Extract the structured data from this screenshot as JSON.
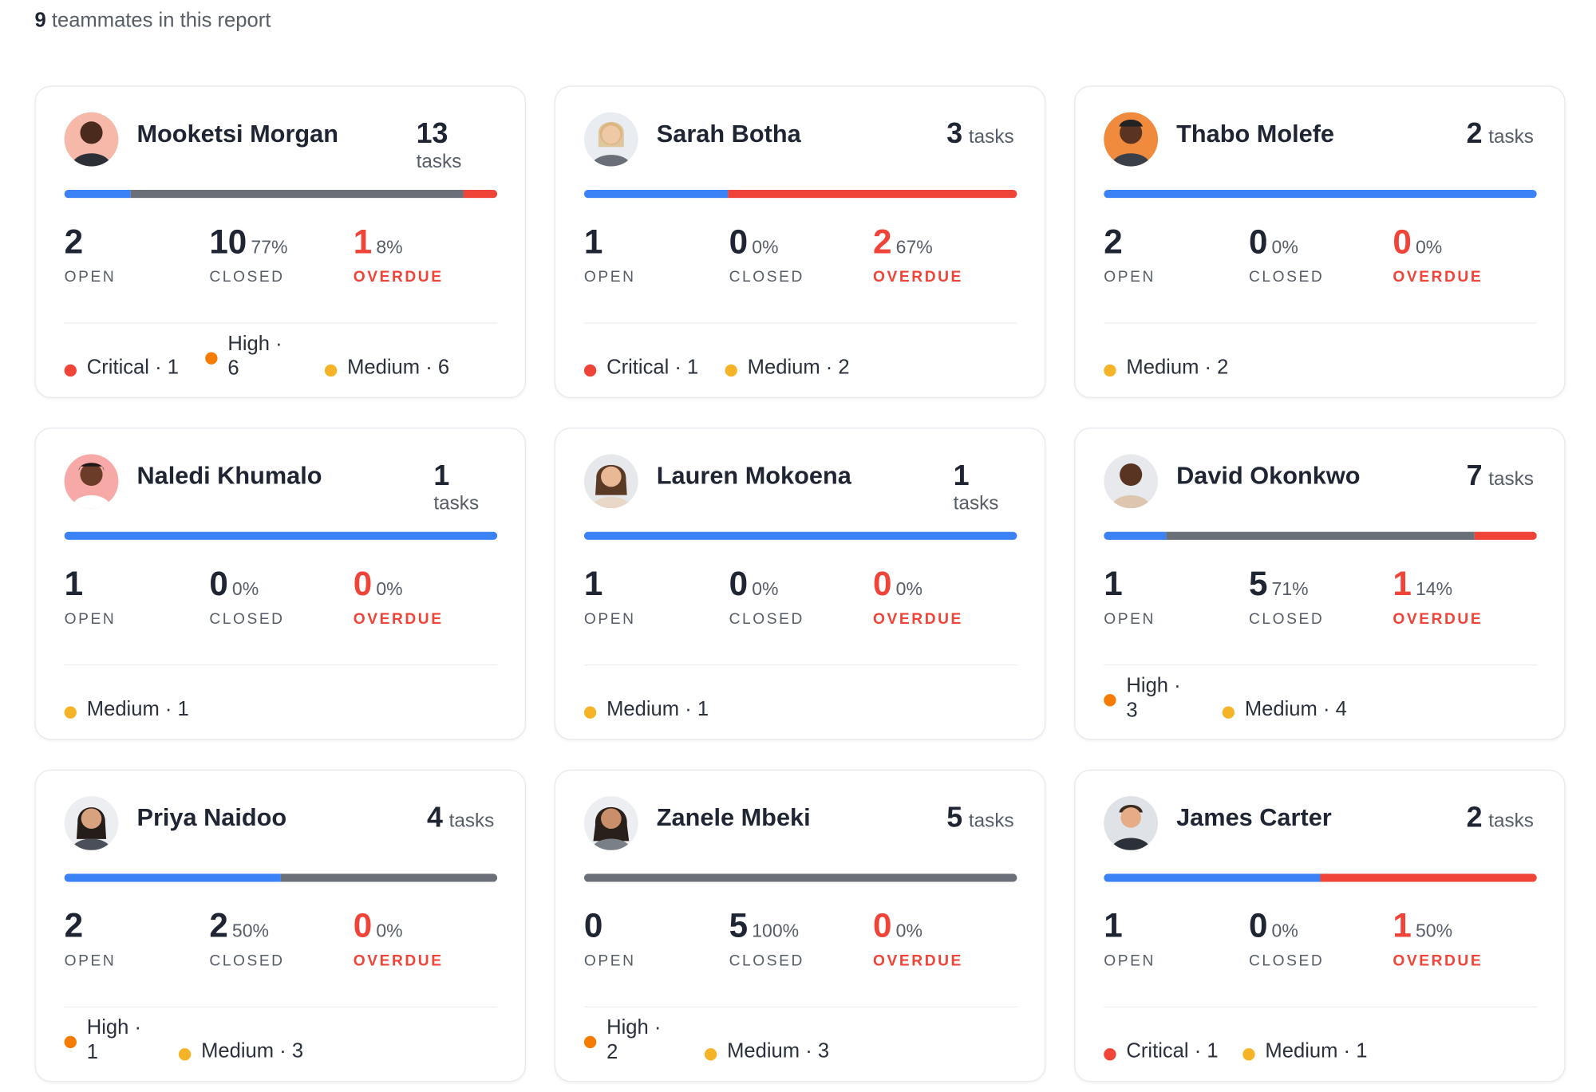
{
  "summary": {
    "count": "9",
    "text": "teammates in this report"
  },
  "labels": {
    "open": "OPEN",
    "closed": "CLOSED",
    "overdue": "OVERDUE",
    "tasks": "tasks"
  },
  "colors": {
    "open": "#3b82f6",
    "closed": "#6b6f78",
    "overdue": "#f04438",
    "critical": "#f04438",
    "high": "#f57c00",
    "medium": "#f5b428"
  },
  "members": [
    {
      "name": "Mooketsi Morgan",
      "tasks": "13",
      "avatar_icon": "avatar-icon",
      "open": "2",
      "closed": "10",
      "closed_pct": "77%",
      "overdue": "1",
      "overdue_pct": "8%",
      "priorities": [
        {
          "level": "critical",
          "text": "Critical · 1"
        },
        {
          "level": "high",
          "text": "High · 6"
        },
        {
          "level": "medium",
          "text": "Medium · 6"
        }
      ]
    },
    {
      "name": "Sarah Botha",
      "tasks": "3",
      "avatar_icon": "avatar-icon",
      "open": "1",
      "closed": "0",
      "closed_pct": "0%",
      "overdue": "2",
      "overdue_pct": "67%",
      "priorities": [
        {
          "level": "critical",
          "text": "Critical · 1"
        },
        {
          "level": "medium",
          "text": "Medium · 2"
        }
      ]
    },
    {
      "name": "Thabo Molefe",
      "tasks": "2",
      "avatar_icon": "avatar-icon",
      "open": "2",
      "closed": "0",
      "closed_pct": "0%",
      "overdue": "0",
      "overdue_pct": "0%",
      "priorities": [
        {
          "level": "medium",
          "text": "Medium · 2"
        }
      ]
    },
    {
      "name": "Naledi Khumalo",
      "tasks": "1",
      "avatar_icon": "avatar-icon",
      "open": "1",
      "closed": "0",
      "closed_pct": "0%",
      "overdue": "0",
      "overdue_pct": "0%",
      "priorities": [
        {
          "level": "medium",
          "text": "Medium · 1"
        }
      ]
    },
    {
      "name": "Lauren Mokoena",
      "tasks": "1",
      "avatar_icon": "avatar-icon",
      "open": "1",
      "closed": "0",
      "closed_pct": "0%",
      "overdue": "0",
      "overdue_pct": "0%",
      "priorities": [
        {
          "level": "medium",
          "text": "Medium · 1"
        }
      ]
    },
    {
      "name": "David Okonkwo",
      "tasks": "7",
      "avatar_icon": "avatar-icon",
      "open": "1",
      "closed": "5",
      "closed_pct": "71%",
      "overdue": "1",
      "overdue_pct": "14%",
      "priorities": [
        {
          "level": "high",
          "text": "High · 3"
        },
        {
          "level": "medium",
          "text": "Medium · 4"
        }
      ]
    },
    {
      "name": "Priya Naidoo",
      "tasks": "4",
      "avatar_icon": "avatar-icon",
      "open": "2",
      "closed": "2",
      "closed_pct": "50%",
      "overdue": "0",
      "overdue_pct": "0%",
      "priorities": [
        {
          "level": "high",
          "text": "High · 1"
        },
        {
          "level": "medium",
          "text": "Medium · 3"
        }
      ]
    },
    {
      "name": "Zanele Mbeki",
      "tasks": "5",
      "avatar_icon": "avatar-icon",
      "open": "0",
      "closed": "5",
      "closed_pct": "100%",
      "overdue": "0",
      "overdue_pct": "0%",
      "priorities": [
        {
          "level": "high",
          "text": "High · 2"
        },
        {
          "level": "medium",
          "text": "Medium · 3"
        }
      ]
    },
    {
      "name": "James Carter",
      "tasks": "2",
      "avatar_icon": "avatar-icon",
      "open": "1",
      "closed": "0",
      "closed_pct": "0%",
      "overdue": "1",
      "overdue_pct": "50%",
      "priorities": [
        {
          "level": "critical",
          "text": "Critical · 1"
        },
        {
          "level": "medium",
          "text": "Medium · 1"
        }
      ]
    }
  ]
}
